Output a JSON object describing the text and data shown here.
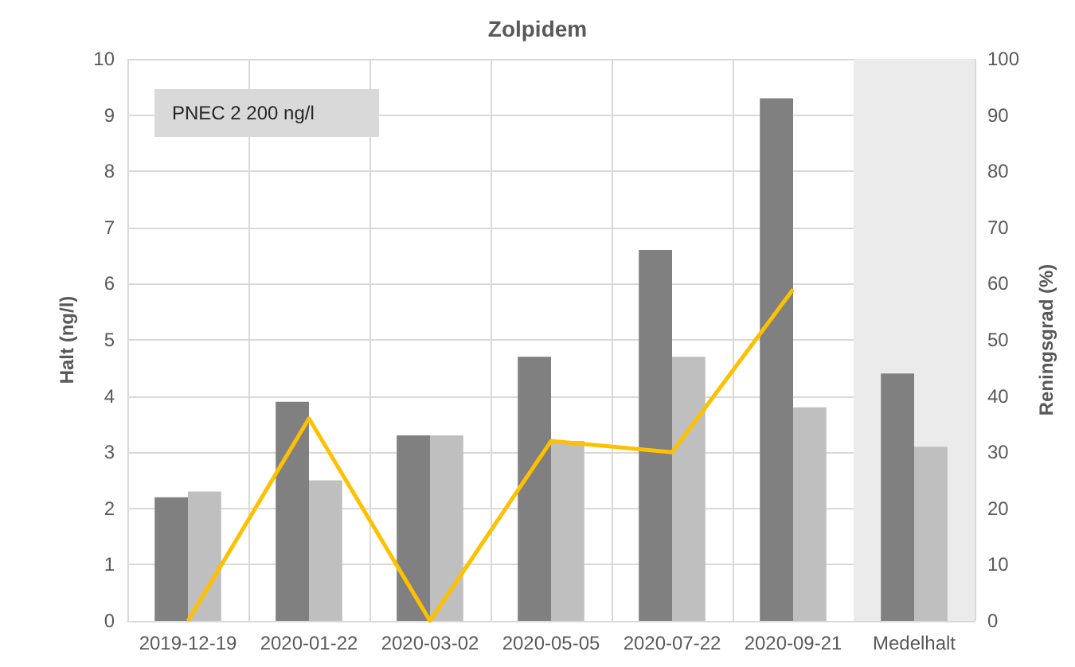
{
  "chart_data": {
    "type": "bar",
    "title": "Zolpidem",
    "ylabel": "Halt (ng/l)",
    "y2label": "Reningsgrad (%)",
    "annotations": [
      "PNEC 2 200 ng/l"
    ],
    "categories": [
      "2019-12-19",
      "2020-01-22",
      "2020-03-02",
      "2020-05-05",
      "2020-07-22",
      "2020-09-21",
      "Medelhalt"
    ],
    "series": [
      {
        "color": "#808080",
        "values": [
          2.2,
          3.9,
          3.3,
          4.7,
          6.6,
          9.3,
          4.4
        ]
      },
      {
        "color": "#bfbfbf",
        "values": [
          2.3,
          2.5,
          3.3,
          3.2,
          4.7,
          3.8,
          3.1
        ]
      },
      {
        "type": "line",
        "axis": "y2",
        "color": "#ffc000",
        "values": [
          0,
          36,
          0,
          32,
          30,
          59,
          null
        ]
      }
    ],
    "ylim": [
      0,
      10
    ],
    "yticks": [
      0,
      1,
      2,
      3,
      4,
      5,
      6,
      7,
      8,
      9,
      10
    ],
    "y2lim": [
      0,
      100
    ],
    "y2ticks": [
      0,
      10,
      20,
      30,
      40,
      50,
      60,
      70,
      80,
      90,
      100
    ],
    "bands": [
      {
        "axis": "x",
        "from": "Medelhalt",
        "to": "Medelhalt",
        "color": "#ebebeb"
      }
    ],
    "grid": true,
    "marker": "none",
    "line_style": "solid"
  }
}
